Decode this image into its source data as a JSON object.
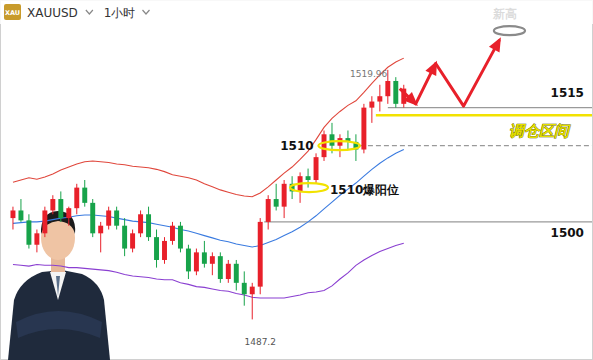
{
  "chart_data": {
    "type": "candlestick",
    "title": "XAUUSD",
    "subtitle": "1小时",
    "icon_label": "XAU",
    "tick_labels": false,
    "grid": false,
    "xlim": [
      -1.5,
      72.6
    ],
    "ylim": [
      1482,
      1529
    ],
    "x": [
      0,
      1,
      2,
      3,
      4,
      5,
      6,
      7,
      8,
      9,
      10,
      11,
      12,
      13,
      14,
      15,
      16,
      17,
      18,
      19,
      20,
      21,
      22,
      23,
      24,
      25,
      26,
      27,
      28,
      29,
      30,
      31,
      32,
      33,
      34,
      35,
      36,
      37,
      38,
      39,
      40,
      41,
      42,
      43,
      44,
      45,
      46,
      47,
      48,
      49
    ],
    "open": [
      1500.5,
      1501.5,
      1500.2,
      1497,
      1498.5,
      1501.5,
      1503,
      1500.5,
      1501.8,
      1504.5,
      1502.5,
      1498.5,
      1499.5,
      1501.5,
      1499.5,
      1496.5,
      1498.5,
      1501,
      1498,
      1495,
      1497.5,
      1499.5,
      1496.5,
      1493.5,
      1496,
      1494.5,
      1495.5,
      1492.5,
      1494.5,
      1492,
      1490.5,
      1491.5,
      1500,
      1503,
      1502,
      1505,
      1504,
      1506,
      1505.5,
      1508.5,
      1511.5,
      1510,
      1511,
      1510.5,
      1509.5,
      1515,
      1515.8,
      1516.5,
      1518.5,
      1515.5
    ],
    "high": [
      1502,
      1503,
      1501,
      1499,
      1502,
      1503.5,
      1504,
      1502,
      1505,
      1505.5,
      1503,
      1500,
      1502,
      1502,
      1500.5,
      1499,
      1501.5,
      1502,
      1499,
      1498,
      1500,
      1500,
      1497,
      1496.5,
      1497.5,
      1496,
      1496,
      1495,
      1495,
      1493.5,
      1492,
      1500.5,
      1503.5,
      1505,
      1505.5,
      1506,
      1506.5,
      1507,
      1509,
      1512,
      1513,
      1511.5,
      1512,
      1511.5,
      1515.5,
      1516.5,
      1518,
      1519.96,
      1519,
      1518
    ],
    "low": [
      1499,
      1500,
      1496.5,
      1496,
      1498,
      1501,
      1500,
      1499.5,
      1501,
      1502,
      1498,
      1496,
      1499,
      1499,
      1495.5,
      1496,
      1498,
      1497.5,
      1494,
      1494.5,
      1497,
      1496,
      1492.5,
      1493,
      1494,
      1493,
      1492,
      1492,
      1491,
      1489,
      1487.2,
      1490.5,
      1499,
      1501.5,
      1500.5,
      1503,
      1502.5,
      1504.5,
      1505,
      1508,
      1509,
      1508.5,
      1509.5,
      1508,
      1509,
      1513,
      1514.5,
      1515.5,
      1515,
      1515
    ],
    "close": [
      1501.5,
      1500.2,
      1497,
      1498.5,
      1501.5,
      1503,
      1500.5,
      1501.8,
      1504.5,
      1502.5,
      1498.5,
      1499.5,
      1501.5,
      1499.5,
      1496.5,
      1498.5,
      1501,
      1498,
      1495,
      1497.5,
      1499.5,
      1496.5,
      1493.5,
      1496,
      1494.5,
      1495.5,
      1492.5,
      1494.5,
      1492,
      1490.5,
      1491.5,
      1500,
      1503,
      1502,
      1505,
      1504,
      1506,
      1505.5,
      1508.5,
      1511.5,
      1510,
      1511,
      1510.5,
      1509.5,
      1515,
      1515.8,
      1516.5,
      1518.5,
      1515.5,
      1517.5
    ],
    "series": [
      {
        "type": "line",
        "color": "#e0473c",
        "values": [
          1505.2,
          1505.5,
          1505.8,
          1505.6,
          1505.9,
          1506.3,
          1506.8,
          1507.2,
          1507.6,
          1507.9,
          1508.0,
          1507.9,
          1507.8,
          1507.6,
          1507.5,
          1507.3,
          1507.2,
          1507.1,
          1506.9,
          1506.6,
          1506.2,
          1506.0,
          1505.8,
          1505.5,
          1505.0,
          1504.6,
          1504.2,
          1503.9,
          1503.6,
          1503.4,
          1503.3,
          1503.8,
          1504.6,
          1505.5,
          1506.4,
          1507.2,
          1508.2,
          1509.3,
          1510.8,
          1512.4,
          1513.6,
          1514.5,
          1515.3,
          1515.9,
          1517.0,
          1518.2,
          1519.3,
          1520.3,
          1521.0,
          1521.5
        ]
      },
      {
        "type": "line",
        "color": "#3a7be0",
        "values": [
          1499.8,
          1499.9,
          1500.0,
          1500.0,
          1500.1,
          1500.3,
          1500.5,
          1500.6,
          1500.8,
          1500.9,
          1500.9,
          1500.8,
          1500.7,
          1500.5,
          1500.3,
          1500.1,
          1500.0,
          1499.9,
          1499.7,
          1499.5,
          1499.3,
          1499.0,
          1498.8,
          1498.5,
          1498.2,
          1497.9,
          1497.6,
          1497.4,
          1497.1,
          1496.9,
          1496.7,
          1496.9,
          1497.3,
          1497.7,
          1498.2,
          1498.7,
          1499.3,
          1500.0,
          1500.8,
          1501.7,
          1502.6,
          1503.5,
          1504.3,
          1505.1,
          1506.0,
          1506.9,
          1507.7,
          1508.4,
          1509.0,
          1509.5
        ]
      },
      {
        "type": "line",
        "color": "#8a3fd1",
        "values": [
          1494.4,
          1494.3,
          1494.2,
          1494.4,
          1494.3,
          1494.3,
          1494.2,
          1494.0,
          1494.0,
          1493.9,
          1493.8,
          1493.7,
          1493.6,
          1493.4,
          1493.1,
          1492.9,
          1492.8,
          1492.7,
          1492.5,
          1492.4,
          1492.4,
          1492.0,
          1491.8,
          1491.5,
          1491.4,
          1491.2,
          1491.0,
          1490.9,
          1490.6,
          1490.4,
          1490.1,
          1490.0,
          1490.0,
          1490.0,
          1490.0,
          1490.2,
          1490.4,
          1490.7,
          1490.8,
          1491.0,
          1491.6,
          1492.5,
          1493.3,
          1494.3,
          1495.0,
          1495.6,
          1496.1,
          1496.5,
          1496.9,
          1497.2
        ]
      }
    ],
    "levels": [
      {
        "value": 1515,
        "from_x": 47,
        "color": "#9a9a9a",
        "line_style": "solid"
      },
      {
        "value": 1514,
        "from_x": 45.5,
        "color": "#f2e200",
        "line_style": "solid"
      },
      {
        "value": 1510,
        "from_x": 43.5,
        "color": "#9a9a9a",
        "line_style": "dashed"
      },
      {
        "value": 1500,
        "from_x": 31.5,
        "color": "#9a9a9a",
        "line_style": "solid"
      }
    ],
    "highlights": [
      {
        "x": [
          38.3,
          43.5
        ],
        "value": 1510,
        "color": "#f2e200"
      },
      {
        "x": [
          34.75,
          39.5
        ],
        "value": 1504.5,
        "color": "#f2e200"
      },
      {
        "x": [
          60.3,
          64.2
        ],
        "value": 1525.1,
        "color": "#8a8a8a"
      }
    ],
    "projection": {
      "x": [
        48.5,
        50.5,
        53,
        56.5,
        61
      ],
      "values": [
        1517.5,
        1515.5,
        1520.8,
        1515.2,
        1523.9
      ],
      "color": "#e8202a"
    },
    "annotations": [
      {
        "text": "1519.96",
        "x": 44.6,
        "y": 1519.4,
        "color": "#777777"
      },
      {
        "text": "1487.2",
        "x": 31,
        "y": 1484.2,
        "color": "#555555"
      },
      {
        "text": "1510",
        "x": 35.6,
        "y": 1510,
        "color": "#111111"
      },
      {
        "text": "1510爆阳位",
        "x": 44.1,
        "y": 1504.2,
        "color": "#111111"
      },
      {
        "text": "1515",
        "x": 69.5,
        "y": 1516.9,
        "color": "#111111"
      },
      {
        "text": "调仓区间",
        "x": 66,
        "y": 1511.9,
        "color": "#e6e000"
      },
      {
        "text": "1500",
        "x": 69.5,
        "y": 1498.5,
        "color": "#111111"
      },
      {
        "text": "新高",
        "x": 61.75,
        "y": 1527.3,
        "color": "#111111"
      }
    ]
  }
}
